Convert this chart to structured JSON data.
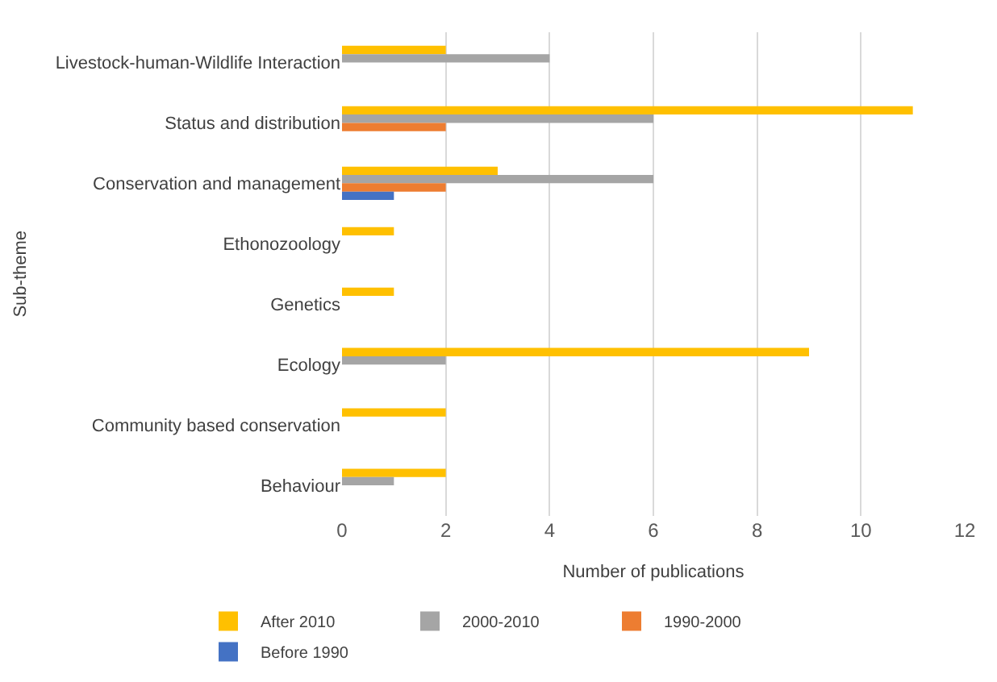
{
  "chart_data": {
    "type": "bar",
    "orientation": "horizontal",
    "xlabel": "Number of publications",
    "ylabel": "Sub-theme",
    "categories": [
      "Livestock-human-Wildlife Interaction",
      "Status and distribution",
      "Conservation and management",
      "Ethonozoology",
      "Genetics",
      "Ecology",
      "Community based conservation",
      "Behaviour"
    ],
    "series": [
      {
        "name": "After 2010",
        "color": "#ffc000",
        "values": [
          2,
          11,
          3,
          1,
          1,
          9,
          2,
          2
        ]
      },
      {
        "name": "2000-2010",
        "color": "#a5a5a5",
        "values": [
          4,
          6,
          6,
          null,
          null,
          2,
          null,
          1
        ]
      },
      {
        "name": "1990-2000",
        "color": "#ed7d31",
        "values": [
          null,
          2,
          2,
          null,
          null,
          null,
          null,
          null
        ]
      },
      {
        "name": "Before 1990",
        "color": "#4472c4",
        "values": [
          null,
          null,
          1,
          null,
          null,
          null,
          null,
          null
        ]
      }
    ],
    "xlim": [
      0,
      12
    ],
    "xticks": [
      0,
      2,
      4,
      6,
      8,
      10,
      12
    ],
    "grid": "x",
    "legend": "bottom"
  }
}
